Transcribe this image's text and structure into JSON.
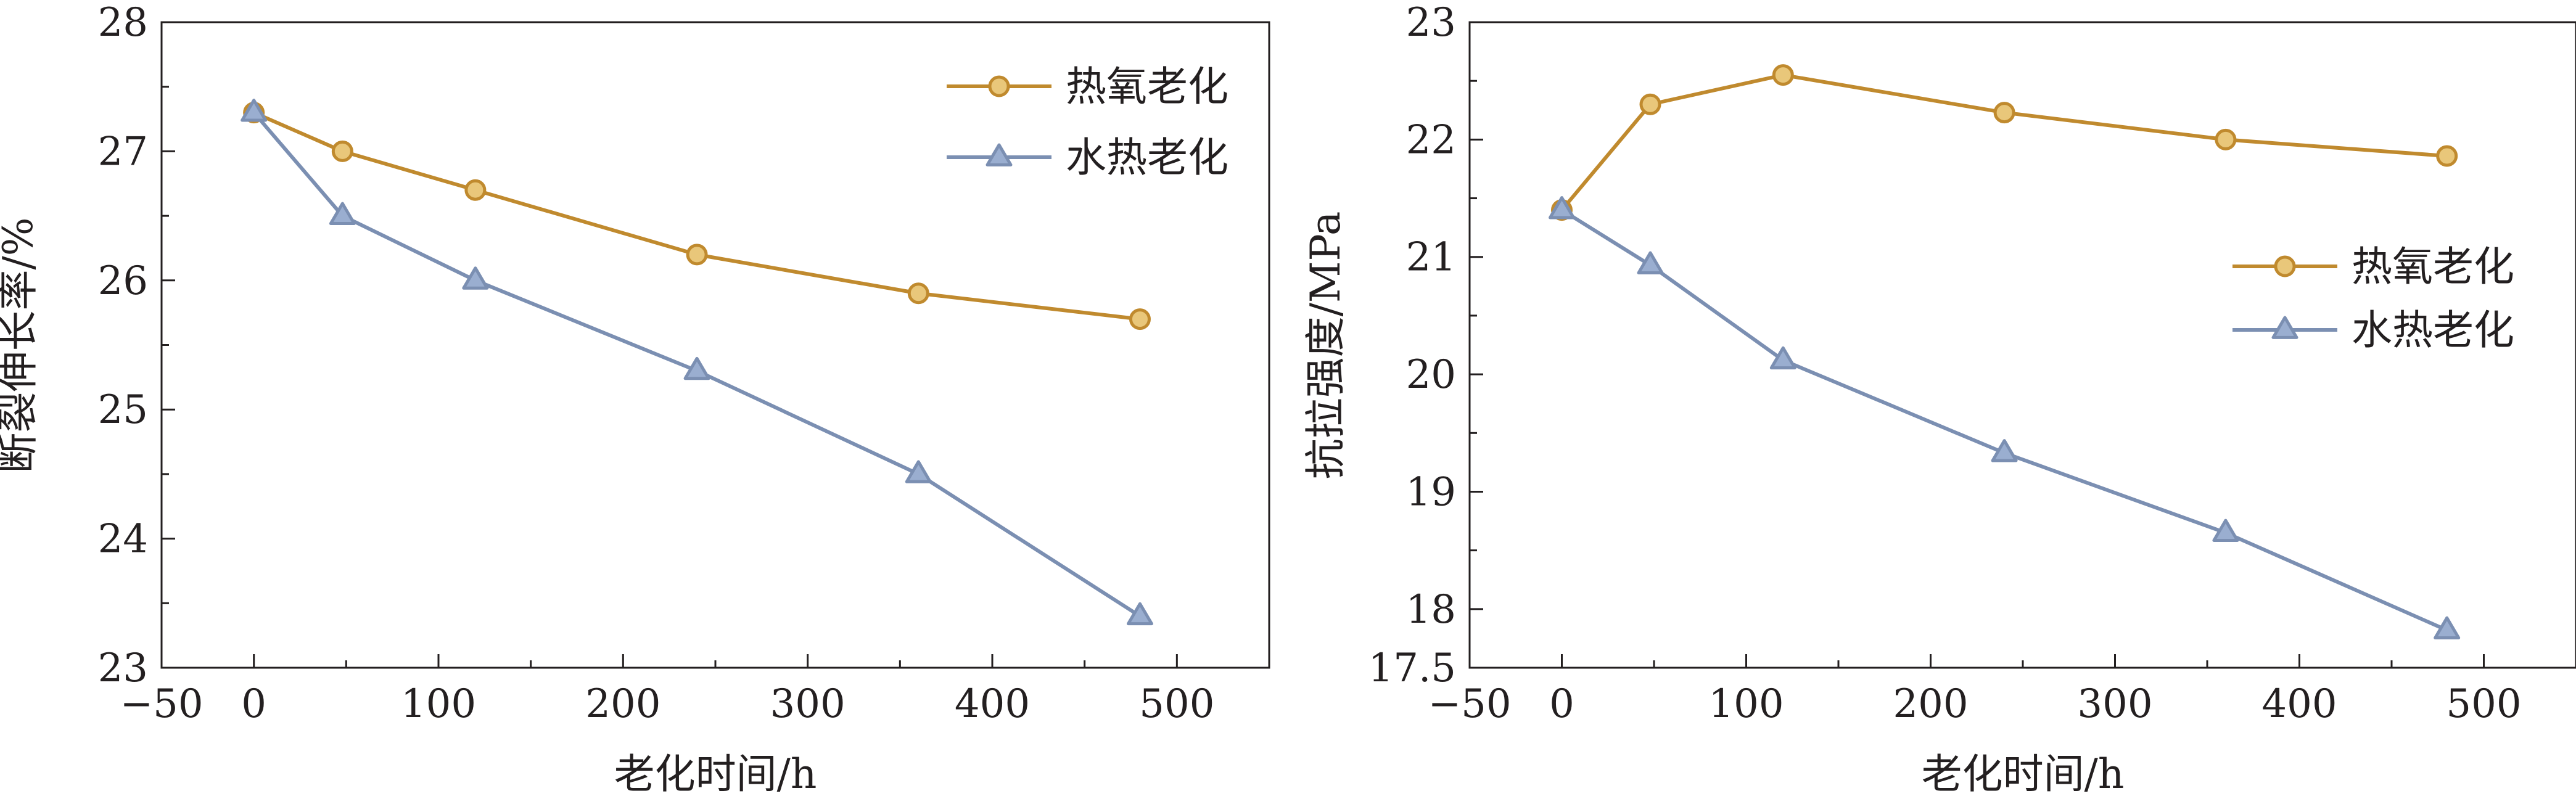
{
  "chart_data": [
    {
      "type": "line",
      "title": "",
      "xlabel": "老化时间/h",
      "ylabel": "断裂伸长率/%",
      "xlim": [
        -50,
        550
      ],
      "ylim": [
        23,
        28
      ],
      "xticks": [
        -50,
        0,
        100,
        200,
        300,
        400,
        500
      ],
      "xtick_labels": [
        "−50",
        "0",
        "100",
        "200",
        "300",
        "400",
        "500"
      ],
      "yticks": [
        23,
        24,
        25,
        26,
        27,
        28
      ],
      "ytick_labels": [
        "23",
        "24",
        "25",
        "26",
        "27",
        "28"
      ],
      "grid": false,
      "legend_position": "top-right",
      "series": [
        {
          "name": "热氧老化",
          "marker": "circle",
          "color": "#c08a2e",
          "fill": "#e9c77a",
          "x": [
            0,
            48,
            120,
            240,
            360,
            480
          ],
          "y": [
            27.3,
            27.0,
            26.7,
            26.2,
            25.9,
            25.7
          ]
        },
        {
          "name": "水热老化",
          "marker": "triangle",
          "color": "#7b8fb2",
          "fill": "#9aaed0",
          "x": [
            0,
            48,
            120,
            240,
            360,
            480
          ],
          "y": [
            27.3,
            26.5,
            26.0,
            25.3,
            24.5,
            23.4
          ]
        }
      ]
    },
    {
      "type": "line",
      "title": "",
      "xlabel": "老化时间/h",
      "ylabel": "抗拉强度/MPa",
      "xlim": [
        -50,
        550
      ],
      "ylim": [
        17.5,
        23
      ],
      "xticks": [
        -50,
        0,
        100,
        200,
        300,
        400,
        500
      ],
      "xtick_labels": [
        "−50",
        "0",
        "100",
        "200",
        "300",
        "400",
        "500"
      ],
      "yticks": [
        17.5,
        18,
        19,
        20,
        21,
        22,
        23
      ],
      "ytick_labels": [
        "17.5",
        "18",
        "19",
        "20",
        "21",
        "22",
        "23"
      ],
      "grid": false,
      "legend_position": "right",
      "series": [
        {
          "name": "热氧老化",
          "marker": "circle",
          "color": "#c08a2e",
          "fill": "#e9c77a",
          "x": [
            0,
            48,
            120,
            240,
            360,
            480
          ],
          "y": [
            21.4,
            22.3,
            22.55,
            22.23,
            22.0,
            21.86
          ]
        },
        {
          "name": "水热老化",
          "marker": "triangle",
          "color": "#7b8fb2",
          "fill": "#9aaed0",
          "x": [
            0,
            48,
            120,
            240,
            360,
            480
          ],
          "y": [
            21.4,
            20.93,
            20.12,
            19.33,
            18.65,
            17.82
          ]
        }
      ]
    }
  ]
}
